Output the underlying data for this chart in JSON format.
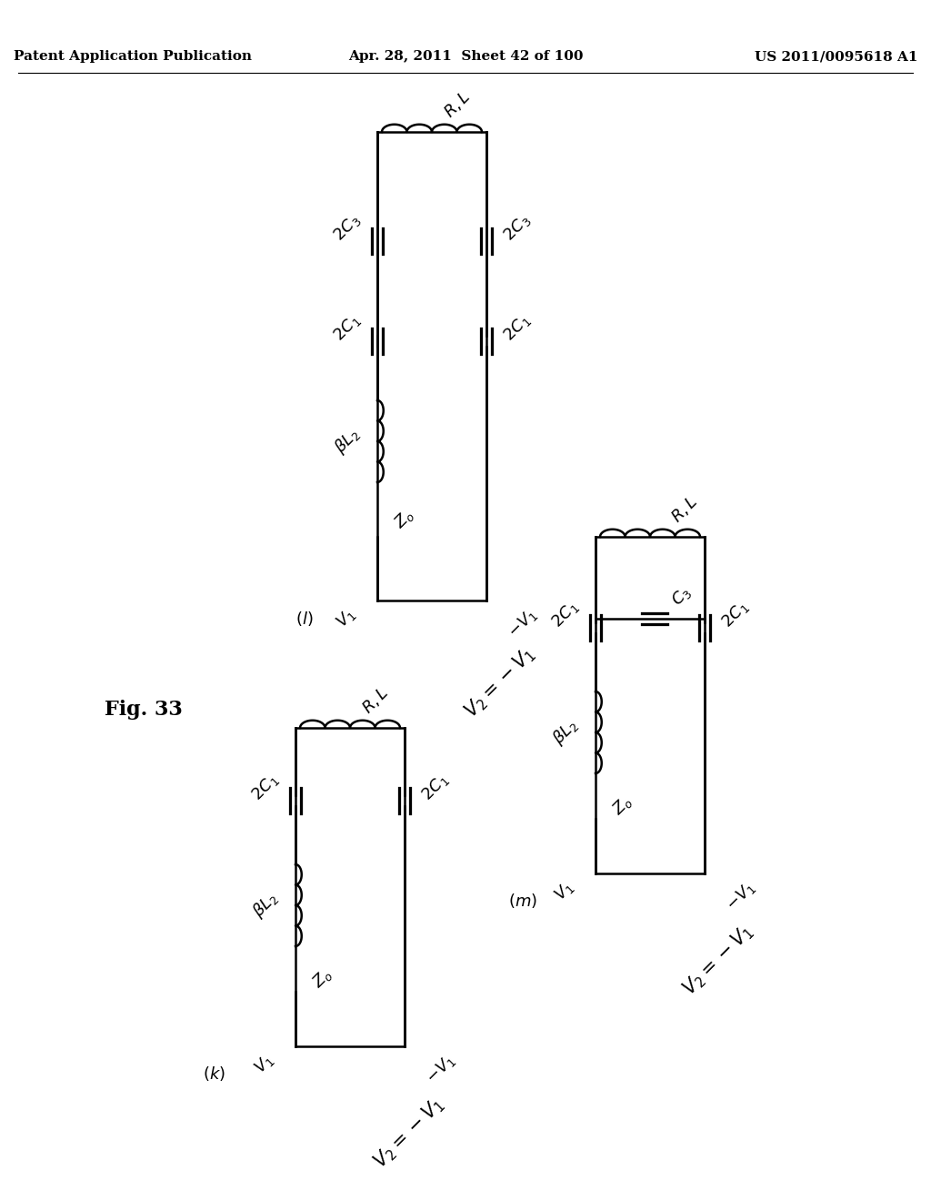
{
  "title": "Fig. 33",
  "header_left": "Patent Application Publication",
  "header_center": "Apr. 28, 2011  Sheet 42 of 100",
  "header_right": "US 2011/0095618 A1",
  "bg_color": "#ffffff",
  "text_color": "#000000",
  "label_rotation": 45,
  "diagrams": [
    "k",
    "l",
    "m"
  ]
}
